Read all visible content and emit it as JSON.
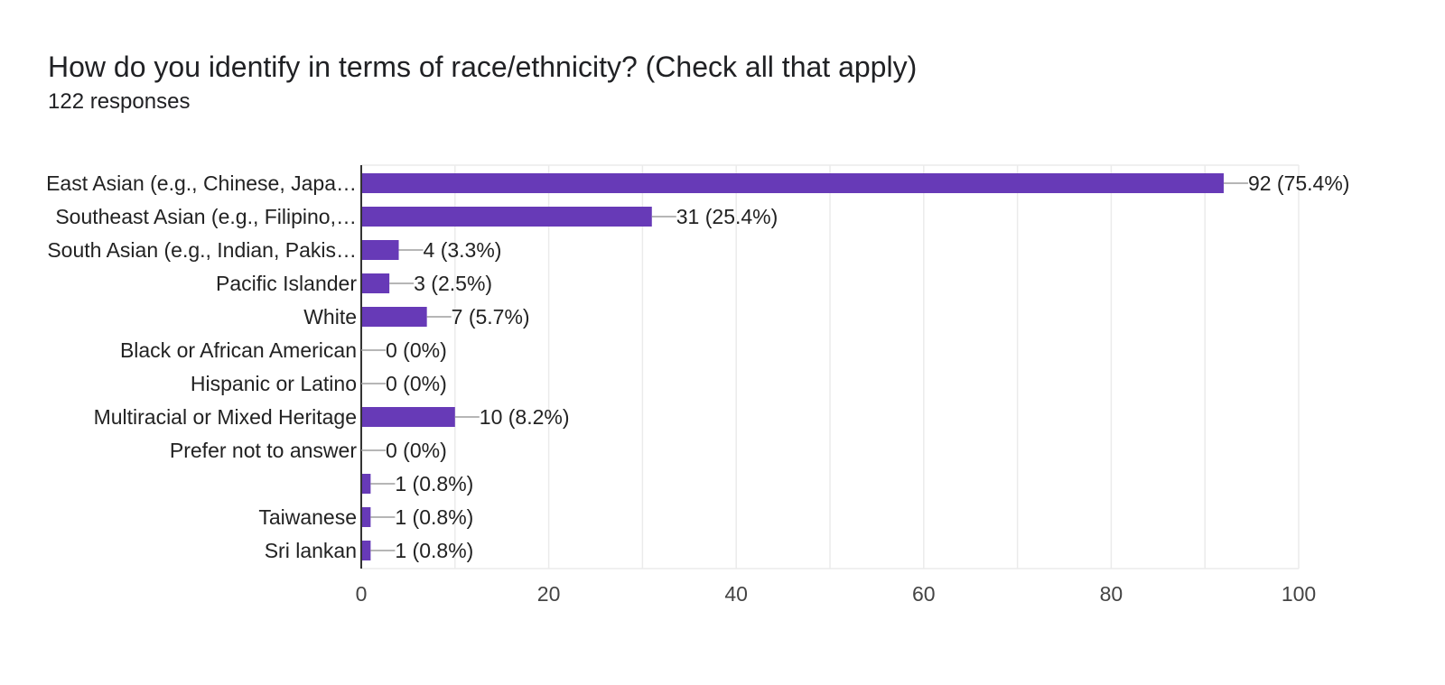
{
  "header": {
    "title": "How do you identify in terms of race/ethnicity? (Check all that apply)",
    "subtitle": "122 responses"
  },
  "chart_data": {
    "type": "bar",
    "orientation": "horizontal",
    "title": "How do you identify in terms of race/ethnicity? (Check all that apply)",
    "subtitle": "122 responses",
    "categories": [
      "East Asian (e.g., Chinese, Japa…",
      "Southeast Asian (e.g., Filipino,…",
      "South Asian (e.g., Indian, Pakis…",
      "Pacific Islander",
      "White",
      "Black or African American",
      "Hispanic or Latino",
      "Multiracial or Mixed Heritage",
      "Prefer not to answer",
      "",
      "Taiwanese",
      "Sri lankan"
    ],
    "values": [
      92,
      31,
      4,
      3,
      7,
      0,
      0,
      10,
      0,
      1,
      1,
      1
    ],
    "value_labels": [
      "92 (75.4%)",
      "31 (25.4%)",
      "4 (3.3%)",
      "3 (2.5%)",
      "7 (5.7%)",
      "0 (0%)",
      "0 (0%)",
      "10 (8.2%)",
      "0 (0%)",
      "1 (0.8%)",
      "1 (0.8%)",
      "1 (0.8%)"
    ],
    "xlim": [
      0,
      100
    ],
    "xticks": [
      0,
      20,
      40,
      60,
      80,
      100
    ],
    "xlabel": "",
    "ylabel": "",
    "grid": true,
    "legend": "none",
    "colors": {
      "bar": "#673ab7",
      "grid": "#ebebeb",
      "axis": "#333333",
      "leader": "#9e9e9e"
    }
  }
}
